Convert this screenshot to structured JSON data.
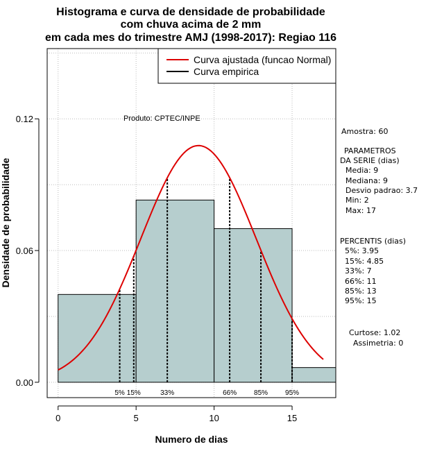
{
  "title_lines": [
    "Histograma e curva de densidade de probabilidade",
    "com chuva acima de 2 mm",
    "em cada mes do trimestre AMJ (1998-2017): Regiao 116"
  ],
  "product_label": "Produto: CPTEC/INPE",
  "legend": [
    {
      "label": "Curva ajustada (funcao Normal)",
      "color": "#dd0000"
    },
    {
      "label": "Curva empirica",
      "color": "#000000"
    }
  ],
  "side_panel": {
    "amostra": "Amostra: 60",
    "parametros": [
      "PARAMETROS",
      "DA SERIE (dias)",
      "Media: 9",
      "Mediana: 9",
      "Desvio padrao: 3.7",
      "Min: 2",
      "Max: 17"
    ],
    "percentis": [
      "PERCENTIS (dias)",
      "5%: 3.95",
      "15%: 4.85",
      "33%: 7",
      "66%: 11",
      "85%: 13",
      "95%: 15"
    ],
    "curtose": "Curtose: 1.02",
    "assimetria": "Assimetria: 0"
  },
  "colors": {
    "bar_fill": "#b6cece",
    "normal_curve": "#dd0000",
    "grid": "#bbbbbb"
  },
  "chart_data": {
    "type": "bar",
    "xlabel": "Numero de dias",
    "ylabel": "Densidade de probabilidade",
    "xlim": [
      -0.7,
      17.8
    ],
    "ylim": [
      -0.007,
      0.152
    ],
    "xticks": [
      0,
      5,
      10,
      15
    ],
    "yticks": [
      0.0,
      0.06,
      0.12
    ],
    "ytick_labels": [
      "0.00",
      "0.06",
      "0.12"
    ],
    "grid": true,
    "histogram": [
      {
        "x0": 0,
        "x1": 5,
        "density": 0.04
      },
      {
        "x0": 5,
        "x1": 10,
        "density": 0.083
      },
      {
        "x0": 10,
        "x1": 15,
        "density": 0.07
      },
      {
        "x0": 15,
        "x1": 17.8,
        "density": 0.0067
      }
    ],
    "normal_fit": {
      "mean": 9,
      "sd": 3.7,
      "x_start": 0,
      "x_end": 17
    },
    "percentiles": [
      {
        "label": "5%",
        "x": 3.95
      },
      {
        "label": "15%",
        "x": 4.85
      },
      {
        "label": "33%",
        "x": 7
      },
      {
        "label": "66%",
        "x": 11
      },
      {
        "label": "85%",
        "x": 13
      },
      {
        "label": "95%",
        "x": 15
      }
    ]
  }
}
